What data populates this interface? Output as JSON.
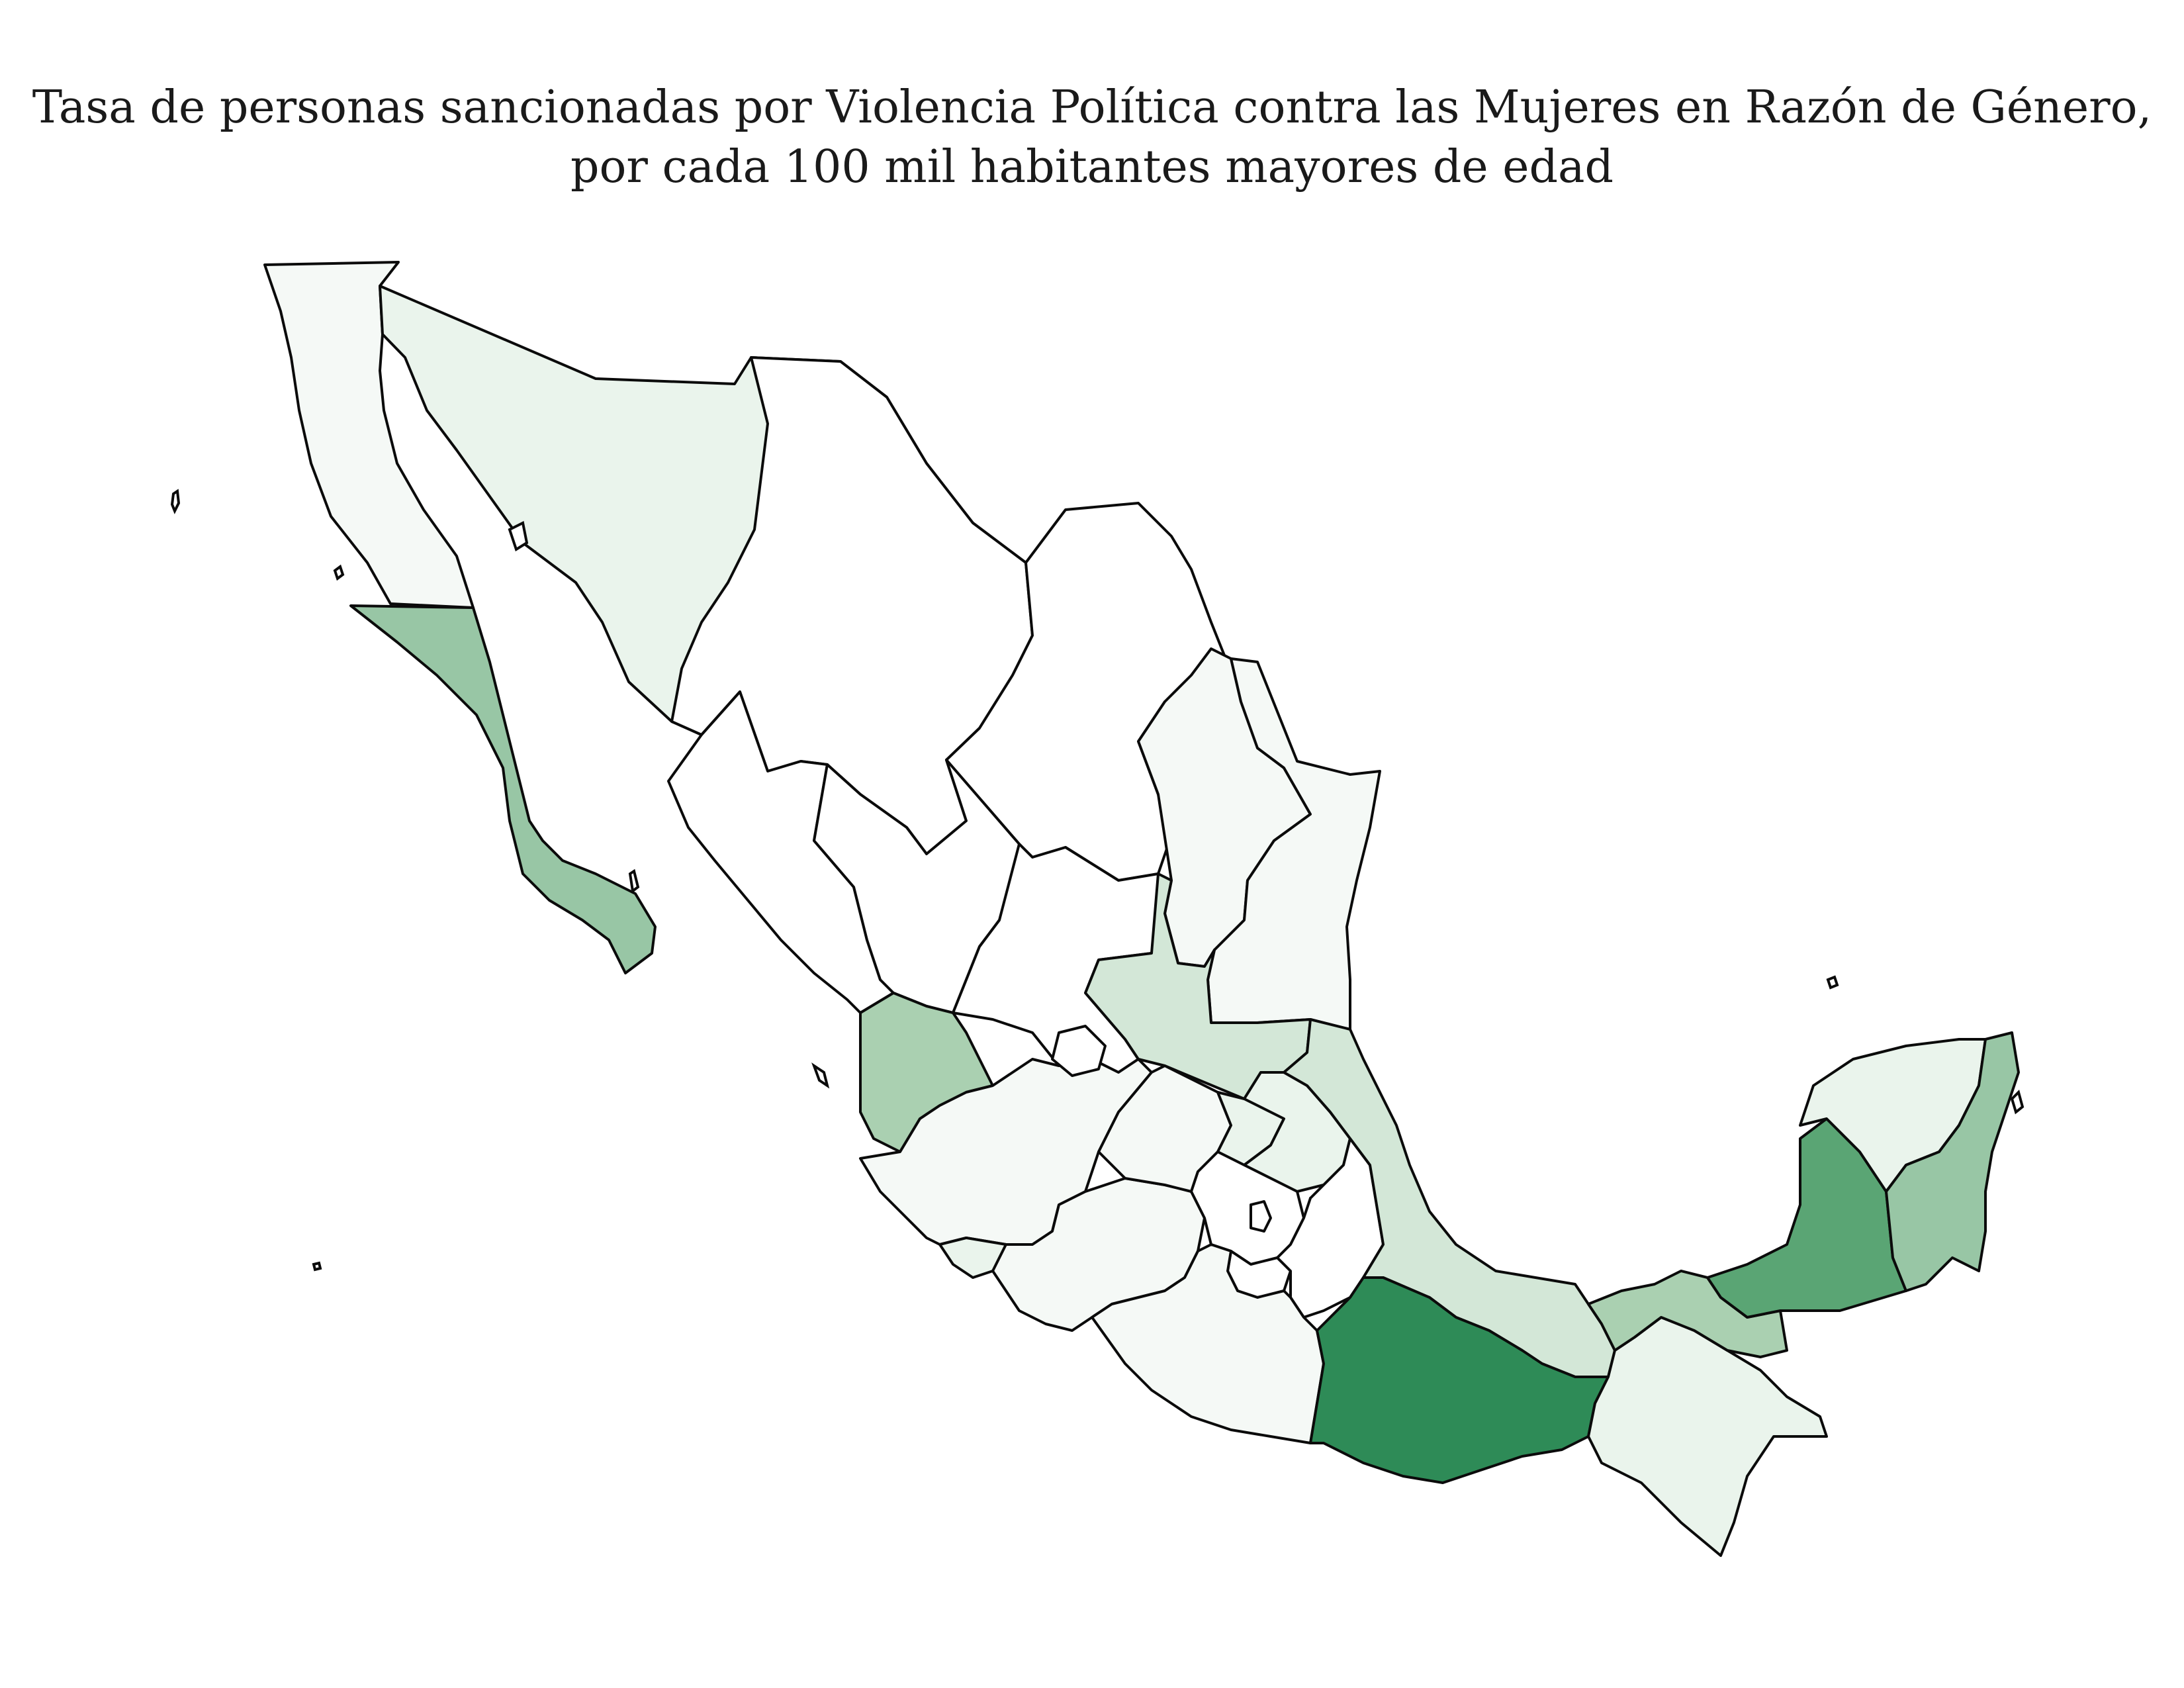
{
  "title": {
    "line1": "Tasa de personas sancionadas por Violencia Política contra las Mujeres en Razón de Género,",
    "line2": "por cada 100 mil habitantes mayores de edad"
  },
  "palette": {
    "none": "#ffffff",
    "very_low": "#f5f9f6",
    "low": "#eaf4ec",
    "low_mid": "#d3e7d7",
    "mid": "#aad0b1",
    "mid_high": "#98c6a5",
    "high": "#5aa574",
    "very_high": "#2e8b57"
  },
  "states": [
    {
      "name": "Baja California",
      "level": "very_low"
    },
    {
      "name": "Sonora",
      "level": "low"
    },
    {
      "name": "Chihuahua",
      "level": "none"
    },
    {
      "name": "Coahuila",
      "level": "none"
    },
    {
      "name": "Nuevo León",
      "level": "very_low"
    },
    {
      "name": "Tamaulipas",
      "level": "very_low"
    },
    {
      "name": "Baja California Sur",
      "level": "mid_high"
    },
    {
      "name": "Sinaloa",
      "level": "none"
    },
    {
      "name": "Durango",
      "level": "none"
    },
    {
      "name": "Zacatecas",
      "level": "none"
    },
    {
      "name": "San Luis Potosí",
      "level": "low_mid"
    },
    {
      "name": "Nayarit",
      "level": "mid"
    },
    {
      "name": "Aguascalientes",
      "level": "none"
    },
    {
      "name": "Jalisco",
      "level": "very_low"
    },
    {
      "name": "Colima",
      "level": "low"
    },
    {
      "name": "Michoacán",
      "level": "very_low"
    },
    {
      "name": "Guanajuato",
      "level": "very_low"
    },
    {
      "name": "Querétaro",
      "level": "low"
    },
    {
      "name": "Hidalgo",
      "level": "low"
    },
    {
      "name": "Estado de México",
      "level": "none"
    },
    {
      "name": "Ciudad de México",
      "level": "none"
    },
    {
      "name": "Morelos",
      "level": "none"
    },
    {
      "name": "Tlaxcala",
      "level": "none"
    },
    {
      "name": "Puebla",
      "level": "none"
    },
    {
      "name": "Guerrero",
      "level": "very_low"
    },
    {
      "name": "Veracruz",
      "level": "low_mid"
    },
    {
      "name": "Oaxaca",
      "level": "very_high"
    },
    {
      "name": "Chiapas",
      "level": "low"
    },
    {
      "name": "Tabasco",
      "level": "mid"
    },
    {
      "name": "Campeche",
      "level": "high"
    },
    {
      "name": "Yucatán",
      "level": "low"
    },
    {
      "name": "Quintana Roo",
      "level": "mid_high"
    }
  ]
}
